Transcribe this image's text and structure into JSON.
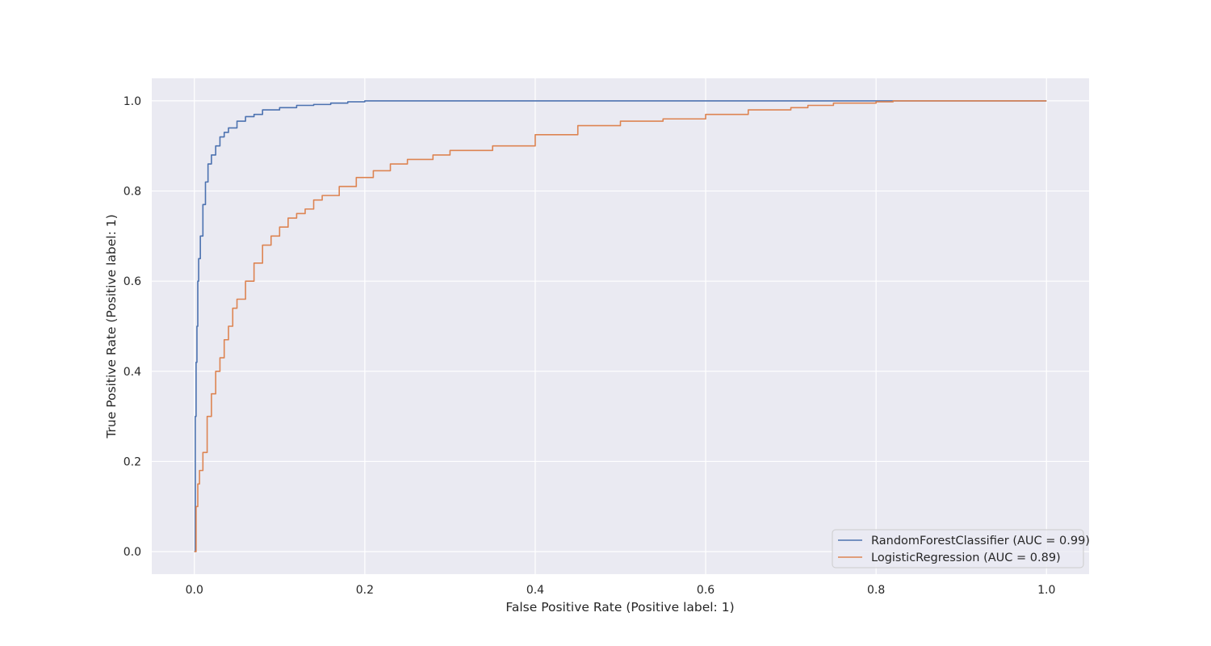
{
  "chart_data": {
    "type": "line",
    "title": "",
    "xlabel": "False Positive Rate (Positive label: 1)",
    "ylabel": "True Positive Rate (Positive label: 1)",
    "xlim": [
      -0.05,
      1.05
    ],
    "ylim": [
      -0.05,
      1.05
    ],
    "x_ticks": [
      0.0,
      0.2,
      0.4,
      0.6,
      0.8,
      1.0
    ],
    "x_tick_labels": [
      "0.0",
      "0.2",
      "0.4",
      "0.6",
      "0.8",
      "1.0"
    ],
    "y_ticks": [
      0.0,
      0.2,
      0.4,
      0.6,
      0.8,
      1.0
    ],
    "y_tick_labels": [
      "0.0",
      "0.2",
      "0.4",
      "0.6",
      "0.8",
      "1.0"
    ],
    "grid": true,
    "legend_position": "lower-right",
    "background_color": "#eaeaf2",
    "series": [
      {
        "name": "RandomForestClassifier (AUC = 0.99)",
        "color": "#4c72b0",
        "x": [
          0.0,
          0.001,
          0.002,
          0.003,
          0.004,
          0.005,
          0.007,
          0.01,
          0.013,
          0.016,
          0.02,
          0.025,
          0.03,
          0.035,
          0.04,
          0.05,
          0.06,
          0.07,
          0.08,
          0.1,
          0.12,
          0.14,
          0.16,
          0.18,
          0.2,
          0.25,
          0.4,
          0.6,
          0.8,
          1.0
        ],
        "y": [
          0.0,
          0.3,
          0.42,
          0.5,
          0.6,
          0.65,
          0.7,
          0.77,
          0.82,
          0.86,
          0.88,
          0.9,
          0.92,
          0.93,
          0.94,
          0.955,
          0.965,
          0.97,
          0.98,
          0.985,
          0.99,
          0.992,
          0.995,
          0.998,
          1.0,
          1.0,
          1.0,
          1.0,
          1.0,
          1.0
        ]
      },
      {
        "name": "LogisticRegression (AUC = 0.89)",
        "color": "#dd8452",
        "x": [
          0.0,
          0.002,
          0.004,
          0.006,
          0.01,
          0.015,
          0.02,
          0.025,
          0.03,
          0.035,
          0.04,
          0.045,
          0.05,
          0.06,
          0.07,
          0.08,
          0.09,
          0.1,
          0.11,
          0.12,
          0.13,
          0.14,
          0.15,
          0.17,
          0.19,
          0.21,
          0.23,
          0.25,
          0.28,
          0.3,
          0.35,
          0.4,
          0.45,
          0.5,
          0.55,
          0.6,
          0.65,
          0.7,
          0.72,
          0.75,
          0.8,
          0.82,
          0.9,
          1.0
        ],
        "y": [
          0.0,
          0.1,
          0.15,
          0.18,
          0.22,
          0.3,
          0.35,
          0.4,
          0.43,
          0.47,
          0.5,
          0.54,
          0.56,
          0.6,
          0.64,
          0.68,
          0.7,
          0.72,
          0.74,
          0.75,
          0.76,
          0.78,
          0.79,
          0.81,
          0.83,
          0.845,
          0.86,
          0.87,
          0.88,
          0.89,
          0.9,
          0.925,
          0.945,
          0.955,
          0.96,
          0.97,
          0.98,
          0.985,
          0.99,
          0.995,
          0.998,
          1.0,
          1.0,
          1.0
        ]
      }
    ]
  }
}
